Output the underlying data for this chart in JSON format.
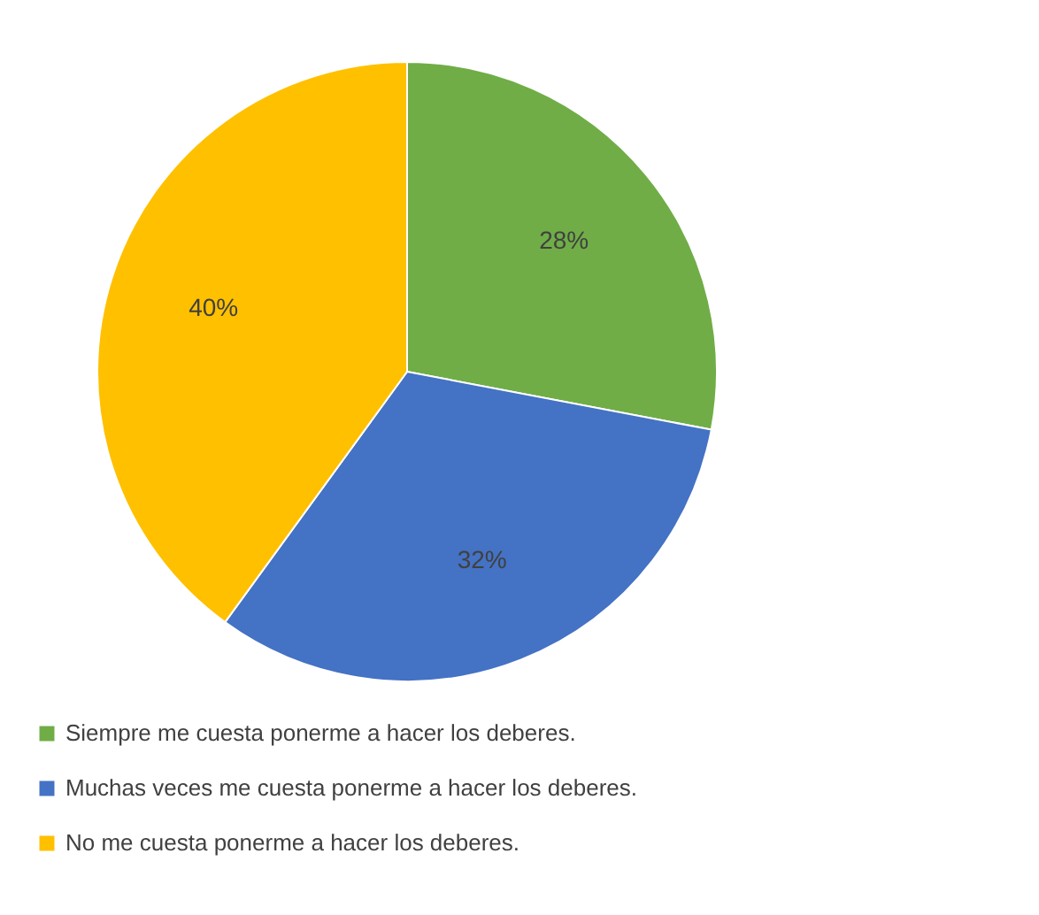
{
  "chart_data": {
    "type": "pie",
    "categories": [
      "Siempre me cuesta ponerme a hacer los deberes.",
      "Muchas veces me cuesta ponerme a hacer los deberes.",
      "No me cuesta ponerme a hacer los deberes."
    ],
    "values": [
      28,
      32,
      40
    ],
    "colors": [
      "#70ad47",
      "#4472c4",
      "#ffc000"
    ],
    "value_labels": [
      "28%",
      "32%",
      "40%"
    ],
    "legend": "bottom"
  }
}
